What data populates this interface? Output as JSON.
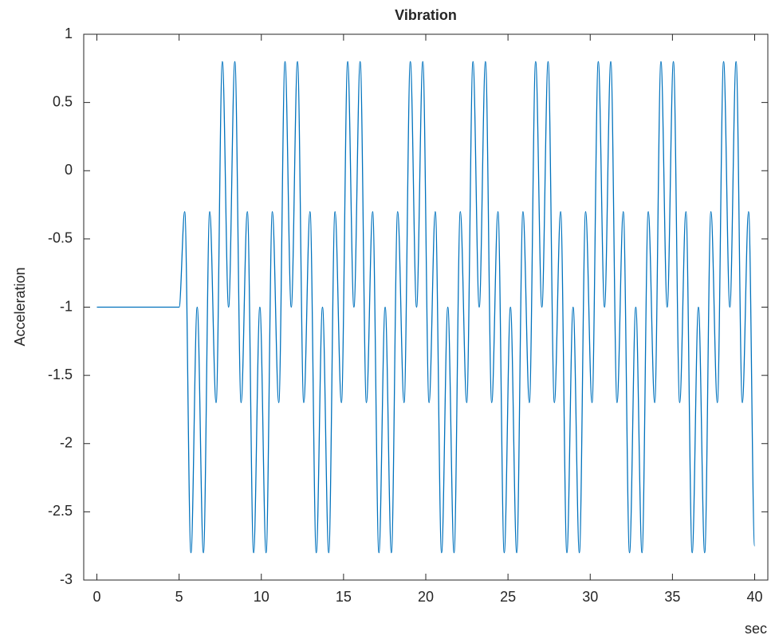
{
  "chart_data": {
    "type": "line",
    "title": "Vibration",
    "xlabel": "sec",
    "ylabel": "Acceleration",
    "xlim": [
      -0.8,
      40.8
    ],
    "ylim": [
      -3,
      1
    ],
    "xticks": [
      0,
      5,
      10,
      15,
      20,
      25,
      30,
      35,
      40
    ],
    "yticks": [
      -3,
      -2.5,
      -2,
      -1.5,
      -1,
      -0.5,
      0,
      0.5,
      1
    ],
    "x": [
      0,
      5,
      5.34,
      5.72,
      6.1,
      6.48,
      6.86,
      7.25,
      7.63,
      8.01,
      8.39,
      8.77,
      9.15,
      9.53,
      9.91,
      10.29,
      10.67,
      11.06,
      11.44,
      11.82,
      12.2,
      12.58,
      12.96,
      13.34,
      13.72,
      14.1,
      14.48,
      14.87,
      15.25,
      15.63,
      16.01,
      16.39,
      16.77,
      17.15,
      17.53,
      17.91,
      18.29,
      18.68,
      19.06,
      19.44,
      19.82,
      20.2,
      20.58,
      20.96,
      21.34,
      21.72,
      22.1,
      22.49,
      22.87,
      23.25,
      23.63,
      24.01,
      24.39,
      24.77,
      25.15,
      25.53,
      25.91,
      26.3,
      26.68,
      27.06,
      27.44,
      27.82,
      28.2,
      28.58,
      28.96,
      29.34,
      29.72,
      30.11,
      30.49,
      30.87,
      31.25,
      31.63,
      32.01,
      32.39,
      32.77,
      33.15,
      33.53,
      33.92,
      34.3,
      34.68,
      35.06,
      35.44,
      35.82,
      36.2,
      36.58,
      36.96,
      37.34,
      37.73,
      38.11,
      38.49,
      38.87,
      39.25,
      39.63,
      40
    ],
    "series": [
      {
        "color": "#0072bd",
        "values": [
          -1,
          -1,
          -0.3,
          -2.8,
          -1,
          -2.8,
          -0.3,
          -1.7,
          0.8,
          -1,
          0.8,
          -1.7,
          -0.3,
          -2.8,
          -1,
          -2.8,
          -0.3,
          -1.7,
          0.8,
          -1,
          0.8,
          -1.7,
          -0.3,
          -2.8,
          -1,
          -2.8,
          -0.3,
          -1.7,
          0.8,
          -1,
          0.8,
          -1.7,
          -0.3,
          -2.8,
          -1,
          -2.8,
          -0.3,
          -1.7,
          0.8,
          -1,
          0.8,
          -1.7,
          -0.3,
          -2.8,
          -1,
          -2.8,
          -0.3,
          -1.7,
          0.8,
          -1,
          0.8,
          -1.7,
          -0.3,
          -2.8,
          -1,
          -2.8,
          -0.3,
          -1.7,
          0.8,
          -1,
          0.8,
          -1.7,
          -0.3,
          -2.8,
          -1,
          -2.8,
          -0.3,
          -1.7,
          0.8,
          -1,
          0.8,
          -1.7,
          -0.3,
          -2.8,
          -1,
          -2.8,
          -0.3,
          -1.7,
          0.8,
          -1,
          0.8,
          -1.7,
          -0.3,
          -2.8,
          -1,
          -2.8,
          -0.3,
          -1.7,
          0.8,
          -1,
          0.8,
          -1.7,
          -0.3,
          -2.75
        ]
      }
    ]
  }
}
